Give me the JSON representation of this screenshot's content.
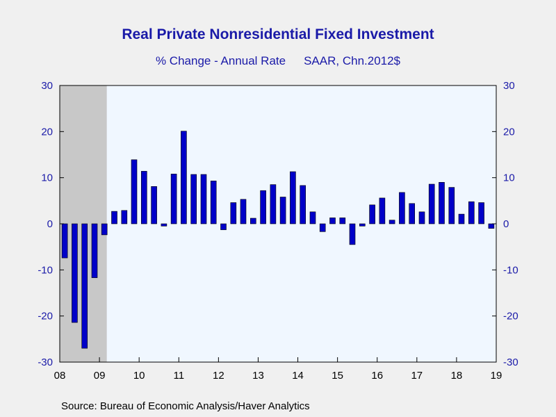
{
  "title": "Real Private Nonresidential Fixed Investment",
  "subtitle_left": "% Change - Annual Rate",
  "subtitle_right": "SAAR, Chn.2012$",
  "source": "Source:  Bureau of Economic Analysis/Haver Analytics",
  "colors": {
    "bar": "#0000c8",
    "plot_bg": "#f0f7ff",
    "recession": "#c8c8c8",
    "axis_text": "#1a1aa8"
  },
  "chart_data": {
    "type": "bar",
    "ylim": [
      -30,
      30
    ],
    "y_ticks": [
      30,
      20,
      10,
      0,
      -10,
      -20,
      -30
    ],
    "x_ticks": [
      "08",
      "09",
      "10",
      "11",
      "12",
      "13",
      "14",
      "15",
      "16",
      "17",
      "18",
      "19"
    ],
    "frequency": "quarterly",
    "start": "2008-Q1",
    "recession_shading": [
      "2008-Q1",
      "2009-Q2"
    ],
    "values": [
      -7.4,
      -21.4,
      -27,
      -11.7,
      -2.4,
      2.7,
      2.9,
      13.9,
      11.4,
      8.1,
      -0.5,
      10.8,
      20.1,
      10.7,
      10.7,
      9.3,
      -1.3,
      4.6,
      5.3,
      1.2,
      7.2,
      8.5,
      5.8,
      11.3,
      8.3,
      2.6,
      -1.7,
      1.3,
      1.3,
      -4.5,
      -0.5,
      4.1,
      5.6,
      0.8,
      6.8,
      4.4,
      2.6,
      8.6,
      9,
      7.9,
      2.1,
      4.8,
      4.6,
      -1
    ]
  }
}
